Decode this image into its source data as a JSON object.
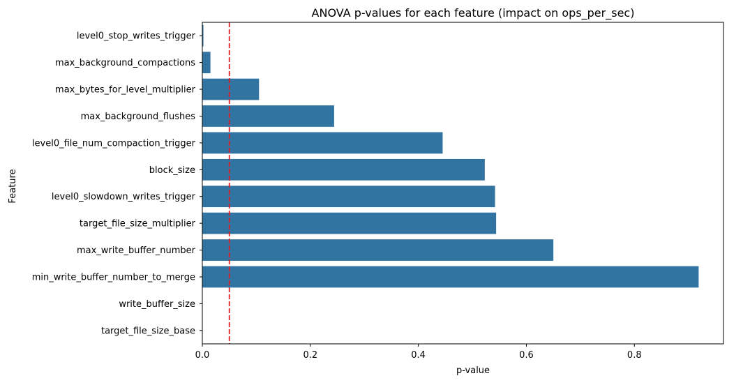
{
  "chart_data": {
    "type": "bar",
    "orientation": "horizontal",
    "title": "ANOVA p-values for each feature (impact on ops_per_sec)",
    "xlabel": "p-value",
    "ylabel": "Feature",
    "xlim": [
      0,
      0.965
    ],
    "xticks": [
      0.0,
      0.2,
      0.4,
      0.6,
      0.8
    ],
    "xtick_labels": [
      "0.0",
      "0.2",
      "0.4",
      "0.6",
      "0.8"
    ],
    "grid": false,
    "bar_color": "#3274a1",
    "categories": [
      "level0_stop_writes_trigger",
      "max_background_compactions",
      "max_bytes_for_level_multiplier",
      "max_background_flushes",
      "level0_file_num_compaction_trigger",
      "block_size",
      "level0_slowdown_writes_trigger",
      "target_file_size_multiplier",
      "max_write_buffer_number",
      "min_write_buffer_number_to_merge",
      "write_buffer_size",
      "target_file_size_base"
    ],
    "values": [
      0.002,
      0.015,
      0.105,
      0.244,
      0.445,
      0.523,
      0.542,
      0.544,
      0.65,
      0.919,
      0.0,
      0.0
    ],
    "reference_line": {
      "x": 0.05,
      "color": "#e41a1c",
      "style": "dashed"
    }
  }
}
